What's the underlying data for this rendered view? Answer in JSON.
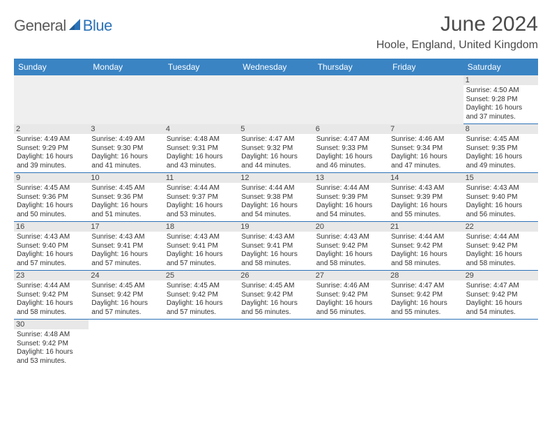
{
  "logo": {
    "text1": "General",
    "text2": "Blue",
    "sail_color": "#2b72b8",
    "text1_color": "#5a5a5a"
  },
  "title": "June 2024",
  "location": "Hoole, England, United Kingdom",
  "header_bg": "#3a84c4",
  "border_color": "#2b72b8",
  "day_names": [
    "Sunday",
    "Monday",
    "Tuesday",
    "Wednesday",
    "Thursday",
    "Friday",
    "Saturday"
  ],
  "weeks": [
    [
      null,
      null,
      null,
      null,
      null,
      null,
      {
        "n": "1",
        "sunrise": "4:50 AM",
        "sunset": "9:28 PM",
        "daylight": "16 hours and 37 minutes."
      }
    ],
    [
      {
        "n": "2",
        "sunrise": "4:49 AM",
        "sunset": "9:29 PM",
        "daylight": "16 hours and 39 minutes."
      },
      {
        "n": "3",
        "sunrise": "4:49 AM",
        "sunset": "9:30 PM",
        "daylight": "16 hours and 41 minutes."
      },
      {
        "n": "4",
        "sunrise": "4:48 AM",
        "sunset": "9:31 PM",
        "daylight": "16 hours and 43 minutes."
      },
      {
        "n": "5",
        "sunrise": "4:47 AM",
        "sunset": "9:32 PM",
        "daylight": "16 hours and 44 minutes."
      },
      {
        "n": "6",
        "sunrise": "4:47 AM",
        "sunset": "9:33 PM",
        "daylight": "16 hours and 46 minutes."
      },
      {
        "n": "7",
        "sunrise": "4:46 AM",
        "sunset": "9:34 PM",
        "daylight": "16 hours and 47 minutes."
      },
      {
        "n": "8",
        "sunrise": "4:45 AM",
        "sunset": "9:35 PM",
        "daylight": "16 hours and 49 minutes."
      }
    ],
    [
      {
        "n": "9",
        "sunrise": "4:45 AM",
        "sunset": "9:36 PM",
        "daylight": "16 hours and 50 minutes."
      },
      {
        "n": "10",
        "sunrise": "4:45 AM",
        "sunset": "9:36 PM",
        "daylight": "16 hours and 51 minutes."
      },
      {
        "n": "11",
        "sunrise": "4:44 AM",
        "sunset": "9:37 PM",
        "daylight": "16 hours and 53 minutes."
      },
      {
        "n": "12",
        "sunrise": "4:44 AM",
        "sunset": "9:38 PM",
        "daylight": "16 hours and 54 minutes."
      },
      {
        "n": "13",
        "sunrise": "4:44 AM",
        "sunset": "9:39 PM",
        "daylight": "16 hours and 54 minutes."
      },
      {
        "n": "14",
        "sunrise": "4:43 AM",
        "sunset": "9:39 PM",
        "daylight": "16 hours and 55 minutes."
      },
      {
        "n": "15",
        "sunrise": "4:43 AM",
        "sunset": "9:40 PM",
        "daylight": "16 hours and 56 minutes."
      }
    ],
    [
      {
        "n": "16",
        "sunrise": "4:43 AM",
        "sunset": "9:40 PM",
        "daylight": "16 hours and 57 minutes."
      },
      {
        "n": "17",
        "sunrise": "4:43 AM",
        "sunset": "9:41 PM",
        "daylight": "16 hours and 57 minutes."
      },
      {
        "n": "18",
        "sunrise": "4:43 AM",
        "sunset": "9:41 PM",
        "daylight": "16 hours and 57 minutes."
      },
      {
        "n": "19",
        "sunrise": "4:43 AM",
        "sunset": "9:41 PM",
        "daylight": "16 hours and 58 minutes."
      },
      {
        "n": "20",
        "sunrise": "4:43 AM",
        "sunset": "9:42 PM",
        "daylight": "16 hours and 58 minutes."
      },
      {
        "n": "21",
        "sunrise": "4:44 AM",
        "sunset": "9:42 PM",
        "daylight": "16 hours and 58 minutes."
      },
      {
        "n": "22",
        "sunrise": "4:44 AM",
        "sunset": "9:42 PM",
        "daylight": "16 hours and 58 minutes."
      }
    ],
    [
      {
        "n": "23",
        "sunrise": "4:44 AM",
        "sunset": "9:42 PM",
        "daylight": "16 hours and 58 minutes."
      },
      {
        "n": "24",
        "sunrise": "4:45 AM",
        "sunset": "9:42 PM",
        "daylight": "16 hours and 57 minutes."
      },
      {
        "n": "25",
        "sunrise": "4:45 AM",
        "sunset": "9:42 PM",
        "daylight": "16 hours and 57 minutes."
      },
      {
        "n": "26",
        "sunrise": "4:45 AM",
        "sunset": "9:42 PM",
        "daylight": "16 hours and 56 minutes."
      },
      {
        "n": "27",
        "sunrise": "4:46 AM",
        "sunset": "9:42 PM",
        "daylight": "16 hours and 56 minutes."
      },
      {
        "n": "28",
        "sunrise": "4:47 AM",
        "sunset": "9:42 PM",
        "daylight": "16 hours and 55 minutes."
      },
      {
        "n": "29",
        "sunrise": "4:47 AM",
        "sunset": "9:42 PM",
        "daylight": "16 hours and 54 minutes."
      }
    ],
    [
      {
        "n": "30",
        "sunrise": "4:48 AM",
        "sunset": "9:42 PM",
        "daylight": "16 hours and 53 minutes."
      },
      null,
      null,
      null,
      null,
      null,
      null
    ]
  ],
  "labels": {
    "sunrise": "Sunrise:",
    "sunset": "Sunset:",
    "daylight": "Daylight:"
  }
}
